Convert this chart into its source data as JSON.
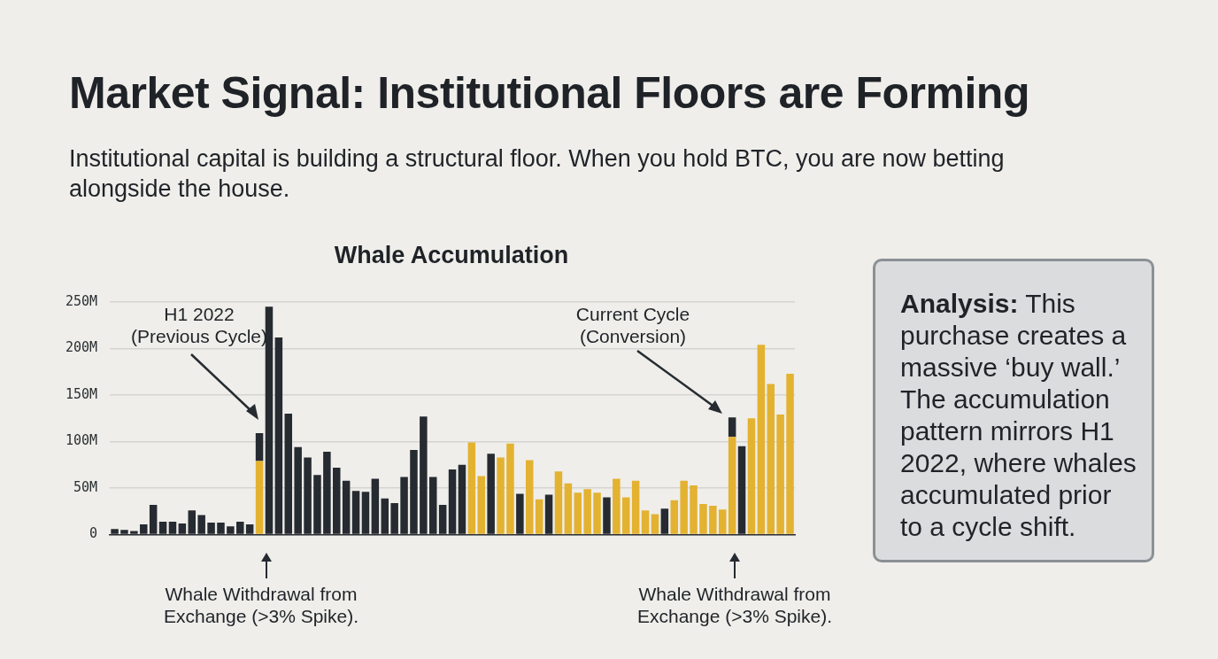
{
  "chart_data": {
    "type": "bar",
    "title": "Market Signal: Institutional Floors are Forming",
    "subtitle": "Institutional capital is building a structural floor. When you hold BTC, you are now betting alongside the house.",
    "annotations": [
      "Whale Accumulation",
      "H1 2022\n(Previous Cycle)",
      "Current Cycle\n(Conversion)",
      "Whale Withdrawal from\nExchange (>3% Spike).",
      "Whale Withdrawal from\nExchange (>3% Spike).",
      "Analysis: This purchase creates a massive ‘buy wall.’ The accumulation pattern mirrors H1 2022, where whales accumulated prior to a cycle shift."
    ],
    "categories": [
      null,
      null,
      null,
      null,
      null,
      null,
      null,
      null,
      null,
      null,
      null,
      null,
      null,
      null,
      null,
      null,
      null,
      null,
      null,
      null,
      null,
      null,
      null,
      null,
      null,
      null,
      null,
      null,
      null,
      null,
      null,
      null,
      null,
      null,
      null,
      null,
      null,
      null,
      null,
      null,
      null,
      null,
      null,
      null,
      null,
      null,
      null,
      null,
      null,
      null,
      null,
      null,
      null,
      null,
      null,
      null,
      null,
      null,
      null,
      null,
      null,
      null,
      null,
      null,
      null,
      null,
      null,
      null,
      null,
      null,
      null
    ],
    "stacked": true,
    "grid": "y",
    "legend": false,
    "ylim": [
      0,
      250
    ],
    "yticks": [
      0,
      {
        "value": 50,
        "label": "50M"
      },
      {
        "value": 100,
        "label": "100M"
      },
      {
        "value": 150,
        "label": "150M"
      },
      {
        "value": 200,
        "label": "200M"
      },
      {
        "value": 250,
        "label": "250M"
      }
    ],
    "series": [
      {
        "color": "#e3b231",
        "values": [
          null,
          null,
          null,
          null,
          null,
          null,
          null,
          null,
          null,
          null,
          null,
          null,
          null,
          null,
          null,
          79,
          null,
          null,
          null,
          null,
          null,
          null,
          null,
          null,
          null,
          null,
          null,
          null,
          null,
          null,
          null,
          null,
          null,
          null,
          null,
          null,
          null,
          99,
          63,
          null,
          83,
          98,
          null,
          80,
          38,
          null,
          68,
          55,
          45,
          49,
          45,
          null,
          60,
          40,
          58,
          26,
          22,
          null,
          37,
          58,
          53,
          33,
          31,
          27,
          105,
          null,
          125,
          204,
          162,
          129,
          173
        ]
      },
      {
        "color": "#262b31",
        "values": [
          6,
          5,
          4,
          11,
          32,
          14,
          14,
          12,
          26,
          21,
          13,
          13,
          9,
          14,
          11,
          30,
          245,
          212,
          130,
          94,
          83,
          64,
          89,
          72,
          58,
          47,
          46,
          60,
          39,
          34,
          62,
          91,
          127,
          62,
          32,
          70,
          75,
          null,
          null,
          87,
          null,
          null,
          44,
          null,
          null,
          43,
          null,
          null,
          null,
          null,
          null,
          40,
          null,
          null,
          null,
          null,
          null,
          28,
          null,
          null,
          null,
          null,
          null,
          null,
          21,
          95,
          null,
          null,
          null,
          null,
          null
        ]
      }
    ]
  }
}
